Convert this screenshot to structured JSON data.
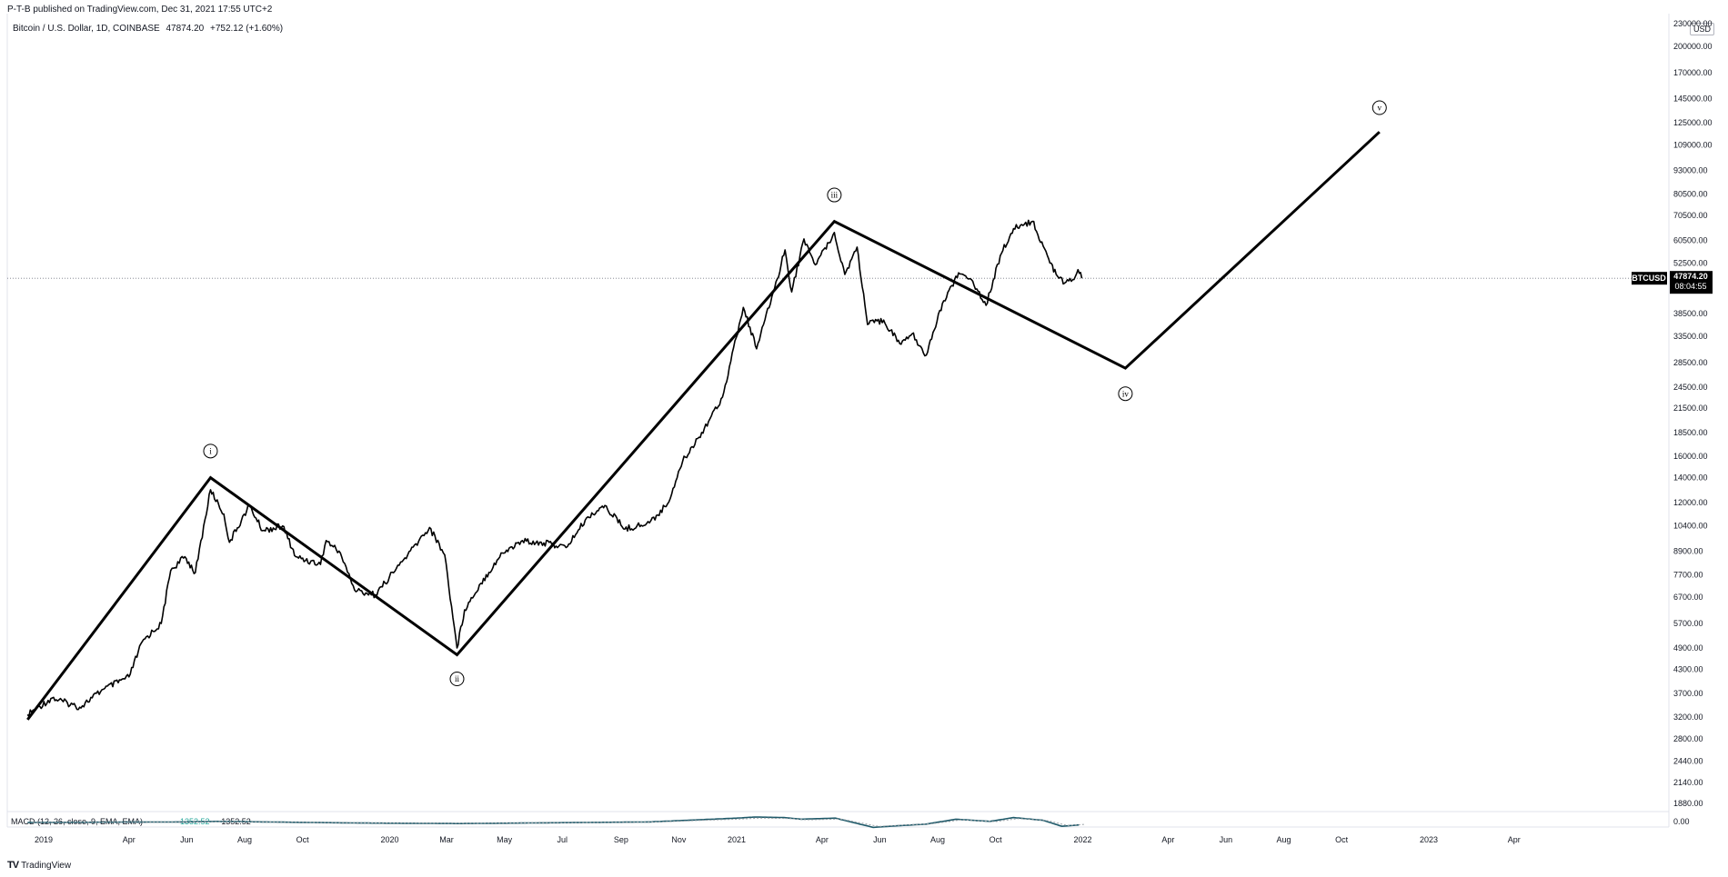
{
  "header": {
    "published": "P-T-B published on TradingView.com, Dec 31, 2021 17:55 UTC+2",
    "symbol": "Bitcoin / U.S. Dollar, 1D, COINBASE",
    "last": "47874.20",
    "change": "+752.12 (+1.60%)"
  },
  "footer": {
    "brand": "TradingView",
    "mark": "TV"
  },
  "price_axis": {
    "currency": "USD",
    "ticks": [
      "230000.00",
      "200000.00",
      "170000.00",
      "145000.00",
      "125000.00",
      "109000.00",
      "93000.00",
      "80500.00",
      "70500.00",
      "60500.00",
      "52500.00",
      "38500.00",
      "33500.00",
      "28500.00",
      "24500.00",
      "21500.00",
      "18500.00",
      "16000.00",
      "14000.00",
      "12000.00",
      "10400.00",
      "8900.00",
      "7700.00",
      "6700.00",
      "5700.00",
      "4900.00",
      "4300.00",
      "3700.00",
      "3200.00",
      "2800.00",
      "2440.00",
      "2140.00",
      "1880.00"
    ]
  },
  "price_label": {
    "ticker": "BTCUSD",
    "value": "47874.20",
    "countdown": "08:04:55"
  },
  "macd": {
    "label": "MACD (12, 26, close, 9, EMA, EMA)",
    "value_a": "1352.52",
    "value_b": "−1352.52",
    "zero_tick": "0.00"
  },
  "time_axis": {
    "ticks": [
      "2019",
      "Apr",
      "Jun",
      "Aug",
      "Oct",
      "2020",
      "Mar",
      "May",
      "Jul",
      "Sep",
      "Nov",
      "2021",
      "Apr",
      "Jun",
      "Aug",
      "Oct",
      "2022",
      "Apr",
      "Jun",
      "Aug",
      "Oct",
      "2023",
      "Apr"
    ]
  },
  "chart_data": {
    "type": "line",
    "scale": "log",
    "grid": false,
    "series": [
      {
        "values": [
          [
            "2018-12-15",
            3250
          ],
          [
            "2019-01-10",
            3600
          ],
          [
            "2019-02-08",
            3400
          ],
          [
            "2019-03-05",
            3800
          ],
          [
            "2019-04-01",
            4100
          ],
          [
            "2019-04-15",
            5100
          ],
          [
            "2019-05-05",
            5700
          ],
          [
            "2019-05-15",
            7900
          ],
          [
            "2019-05-30",
            8600
          ],
          [
            "2019-06-10",
            7800
          ],
          [
            "2019-06-26",
            13000
          ],
          [
            "2019-07-10",
            11200
          ],
          [
            "2019-07-16",
            9400
          ],
          [
            "2019-08-06",
            11800
          ],
          [
            "2019-08-20",
            10100
          ],
          [
            "2019-09-10",
            10400
          ],
          [
            "2019-09-24",
            8600
          ],
          [
            "2019-10-20",
            8200
          ],
          [
            "2019-10-26",
            9500
          ],
          [
            "2019-11-10",
            8800
          ],
          [
            "2019-11-25",
            7000
          ],
          [
            "2019-12-17",
            6800
          ],
          [
            "2020-01-08",
            8000
          ],
          [
            "2020-01-20",
            8700
          ],
          [
            "2020-02-12",
            10300
          ],
          [
            "2020-02-28",
            8700
          ],
          [
            "2020-03-12",
            4900
          ],
          [
            "2020-03-20",
            6200
          ],
          [
            "2020-04-06",
            7300
          ],
          [
            "2020-04-29",
            8800
          ],
          [
            "2020-05-20",
            9500
          ],
          [
            "2020-06-20",
            9300
          ],
          [
            "2020-07-05",
            9100
          ],
          [
            "2020-07-28",
            11000
          ],
          [
            "2020-08-15",
            11800
          ],
          [
            "2020-09-05",
            10200
          ],
          [
            "2020-10-01",
            10600
          ],
          [
            "2020-10-20",
            11900
          ],
          [
            "2020-11-05",
            15500
          ],
          [
            "2020-11-25",
            18500
          ],
          [
            "2020-12-17",
            23000
          ],
          [
            "2021-01-08",
            40000
          ],
          [
            "2021-01-22",
            31000
          ],
          [
            "2021-02-10",
            45000
          ],
          [
            "2021-02-21",
            57000
          ],
          [
            "2021-02-28",
            44000
          ],
          [
            "2021-03-13",
            61000
          ],
          [
            "2021-03-25",
            52000
          ],
          [
            "2021-04-14",
            63500
          ],
          [
            "2021-04-25",
            49000
          ],
          [
            "2021-05-08",
            58000
          ],
          [
            "2021-05-19",
            36000
          ],
          [
            "2021-06-05",
            37000
          ],
          [
            "2021-06-22",
            32000
          ],
          [
            "2021-07-05",
            34000
          ],
          [
            "2021-07-20",
            29800
          ],
          [
            "2021-08-06",
            41000
          ],
          [
            "2021-08-23",
            49500
          ],
          [
            "2021-09-07",
            47000
          ],
          [
            "2021-09-21",
            40500
          ],
          [
            "2021-10-06",
            55000
          ],
          [
            "2021-10-20",
            65000
          ],
          [
            "2021-11-09",
            68000
          ],
          [
            "2021-11-26",
            54000
          ],
          [
            "2021-12-04",
            49000
          ],
          [
            "2021-12-13",
            46500
          ],
          [
            "2021-12-20",
            47000
          ],
          [
            "2021-12-27",
            50500
          ],
          [
            "2021-12-31",
            47874.2
          ]
        ]
      },
      {
        "style": "wave-projection",
        "values": [
          [
            "2018-12-15",
            3150
          ],
          [
            "2019-06-26",
            14000
          ],
          [
            "2020-03-12",
            4700
          ],
          [
            "2021-04-14",
            68000
          ],
          [
            "2022-02-15",
            27500
          ],
          [
            "2022-11-10",
            118000
          ]
        ]
      }
    ],
    "annotations": [
      {
        "label": "i",
        "x": "2019-06-26",
        "y": 16500
      },
      {
        "label": "ii",
        "x": "2020-03-12",
        "y": 4050
      },
      {
        "label": "iii",
        "x": "2021-04-14",
        "y": 80000
      },
      {
        "label": "iv",
        "x": "2022-02-15",
        "y": 23500
      },
      {
        "label": "v",
        "x": "2022-11-10",
        "y": 137000
      }
    ],
    "last_price": 47874.2,
    "macd": [
      [
        "2018-12-15",
        0
      ],
      [
        "2019-06-01",
        0.1
      ],
      [
        "2019-07-01",
        0.2
      ],
      [
        "2019-12-01",
        -0.1
      ],
      [
        "2020-03-15",
        -0.2
      ],
      [
        "2020-10-01",
        0.1
      ],
      [
        "2021-01-01",
        0.8
      ],
      [
        "2021-01-20",
        1.0
      ],
      [
        "2021-02-20",
        0.9
      ],
      [
        "2021-03-10",
        0.6
      ],
      [
        "2021-04-15",
        0.8
      ],
      [
        "2021-05-25",
        -0.9
      ],
      [
        "2021-06-20",
        -0.6
      ],
      [
        "2021-07-20",
        -0.3
      ],
      [
        "2021-08-20",
        0.6
      ],
      [
        "2021-09-25",
        0.2
      ],
      [
        "2021-10-20",
        0.9
      ],
      [
        "2021-11-20",
        0.4
      ],
      [
        "2021-12-10",
        -0.7
      ],
      [
        "2021-12-31",
        -0.4
      ]
    ]
  }
}
